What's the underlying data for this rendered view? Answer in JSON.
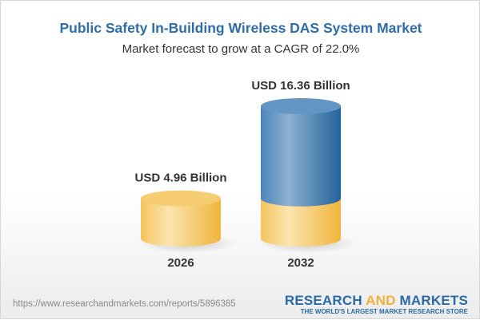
{
  "title": "Public Safety In-Building Wireless DAS System Market",
  "subtitle": "Market forecast to grow at a CAGR of 22.0%",
  "footer": {
    "url": "https://www.researchandmarkets.com/reports/5896385",
    "logo_word1": "RESEARCH",
    "logo_word2": "AND",
    "logo_word3": "MARKETS",
    "tagline": "THE WORLD'S LARGEST MARKET RESEARCH STORE"
  },
  "colors": {
    "gold": "#f2bd4d",
    "blue": "#3f7fb5",
    "title": "#2f6ca8"
  },
  "chart_data": {
    "type": "bar",
    "style": "3d-cylinder",
    "title": "Public Safety In-Building Wireless DAS System Market",
    "subtitle": "Market forecast to grow at a CAGR of 22.0%",
    "categories": [
      "2026",
      "2032"
    ],
    "values": [
      4.96,
      16.36
    ],
    "unit": "USD Billion",
    "data_labels": [
      "USD 4.96 Billion",
      "USD 16.36 Billion"
    ],
    "grid": false
  }
}
